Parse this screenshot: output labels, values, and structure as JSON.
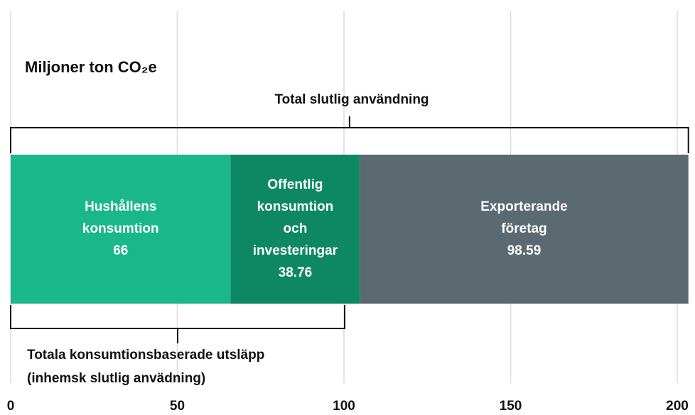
{
  "chart_data": {
    "type": "stacked-bar-horizontal",
    "title": "Miljoner ton CO₂e",
    "annotations": [
      "Total slutlig användning",
      "Totala konsumtionsbaserade utsläpp",
      "(inhemsk slutlig anvädning)"
    ],
    "categories": [
      null
    ],
    "series": [
      {
        "name": "Hushållens konsumtion",
        "color": "#1ab78a",
        "values": [
          66
        ]
      },
      {
        "name": "Offentlig konsumtion och investeringar",
        "color": "#0e8862",
        "values": [
          38.76
        ]
      },
      {
        "name": "Exporterande företag",
        "color": "#5b6a70",
        "values": [
          98.59
        ]
      }
    ],
    "xlim": [
      0,
      200
    ],
    "xticks": [
      0,
      50,
      100,
      150,
      200
    ],
    "grid": true
  }
}
